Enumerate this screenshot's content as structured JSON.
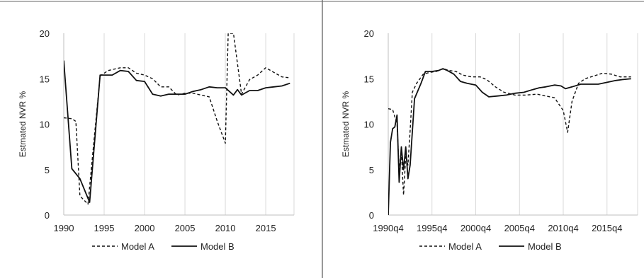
{
  "chart_data": [
    {
      "type": "line",
      "title": "",
      "xlabel": "",
      "ylabel": "Estmated NVR %",
      "ylim": [
        0,
        20
      ],
      "yticks": [
        "0",
        "5",
        "10",
        "15",
        "20"
      ],
      "xlim": [
        1990,
        2018.5
      ],
      "xticks": [
        {
          "value": 1990,
          "label": "1990"
        },
        {
          "value": 1995,
          "label": "1995"
        },
        {
          "value": 2000,
          "label": "2000"
        },
        {
          "value": 2005,
          "label": "2005"
        },
        {
          "value": 2010,
          "label": "2010"
        },
        {
          "value": 2015,
          "label": "2015"
        }
      ],
      "grid": "vertical",
      "legend": "bottom",
      "series": [
        {
          "name": "Model A",
          "style": "dashed",
          "x": [
            1990,
            1991,
            1991.5,
            1992,
            1993,
            1994.5,
            1995.5,
            1997,
            1998,
            1999,
            2000,
            2001,
            2002,
            2003,
            2004,
            2005,
            2006,
            2007,
            2008,
            2009,
            2010,
            2010.35,
            2011,
            2012,
            2013,
            2014,
            2015,
            2016,
            2017,
            2018
          ],
          "y": [
            10.7,
            10.6,
            10.3,
            2.1,
            1.2,
            15.3,
            15.9,
            16.2,
            16.2,
            15.6,
            15.4,
            15.0,
            14.1,
            14.1,
            13.2,
            13.4,
            13.4,
            13.2,
            13.0,
            10.3,
            7.9,
            20.0,
            20.0,
            13.3,
            14.9,
            15.4,
            16.2,
            15.7,
            15.2,
            15.1
          ]
        },
        {
          "name": "Model B",
          "style": "solid",
          "x": [
            1990,
            1991,
            1992,
            1993.2,
            1994.5,
            1996,
            1997,
            1998,
            1999,
            2000,
            2001,
            2002,
            2003,
            2004,
            2005,
            2006,
            2007,
            2008,
            2009,
            2010,
            2011,
            2011.5,
            2012,
            2013,
            2014,
            2015,
            2016,
            2017,
            2018
          ],
          "y": [
            17.0,
            5.1,
            4.0,
            1.4,
            15.4,
            15.4,
            15.9,
            15.8,
            14.8,
            14.7,
            13.3,
            13.1,
            13.3,
            13.3,
            13.3,
            13.6,
            13.8,
            14.1,
            14.0,
            14.0,
            13.2,
            13.8,
            13.2,
            13.7,
            13.7,
            14.0,
            14.1,
            14.2,
            14.5
          ]
        }
      ]
    },
    {
      "type": "line",
      "title": "",
      "xlabel": "",
      "ylabel": "Estmated NVR %",
      "ylim": [
        0,
        20
      ],
      "yticks": [
        "0",
        "5",
        "10",
        "15",
        "20"
      ],
      "xlim": [
        1990.75,
        2019.25
      ],
      "xticks": [
        {
          "value": 1990.75,
          "label": "1990q4"
        },
        {
          "value": 1995.75,
          "label": "1995q4"
        },
        {
          "value": 2000.75,
          "label": "2000q4"
        },
        {
          "value": 2005.75,
          "label": "2005q4"
        },
        {
          "value": 2010.75,
          "label": "2010q4"
        },
        {
          "value": 2015.75,
          "label": "2015q4"
        }
      ],
      "grid": "vertical",
      "legend": "bottom",
      "series": [
        {
          "name": "Model A",
          "style": "dashed",
          "x": [
            1990.75,
            1991.25,
            1991.5,
            1991.75,
            1992.0,
            1992.25,
            1992.5,
            1992.75,
            1993.0,
            1993.25,
            1993.5,
            1994.0,
            1994.75,
            1995.5,
            1996.25,
            1997.0,
            1997.75,
            1998.5,
            1999.25,
            2000.25,
            2001.25,
            2002.0,
            2003.0,
            2004.0,
            2005.25,
            2006.5,
            2007.75,
            2008.75,
            2009.75,
            2010.25,
            2010.75,
            2011.25,
            2011.75,
            2012.5,
            2013.25,
            2014.25,
            2015.25,
            2016.25,
            2017.25,
            2018.5
          ],
          "y": [
            11.7,
            11.6,
            10.8,
            10.0,
            5.0,
            7.0,
            2.2,
            6.5,
            5.5,
            9.3,
            13.5,
            14.5,
            15.5,
            15.7,
            15.8,
            16.1,
            15.9,
            15.8,
            15.4,
            15.2,
            15.2,
            14.9,
            14.1,
            13.5,
            13.2,
            13.2,
            13.3,
            13.1,
            12.9,
            12.2,
            11.5,
            9.1,
            12.5,
            14.5,
            15.0,
            15.3,
            15.6,
            15.5,
            15.2,
            15.2
          ]
        },
        {
          "name": "Model B",
          "style": "solid",
          "x": [
            1990.75,
            1991.0,
            1991.25,
            1991.5,
            1991.75,
            1992.0,
            1992.25,
            1992.5,
            1992.75,
            1993.0,
            1993.25,
            1993.75,
            1994.5,
            1995.0,
            1995.75,
            1996.5,
            1997.0,
            1997.5,
            1998.25,
            1999.0,
            1999.75,
            2000.75,
            2001.5,
            2002.25,
            2003.25,
            2004.25,
            2005.25,
            2006.25,
            2007.25,
            2008.0,
            2008.75,
            2009.75,
            2010.5,
            2011.0,
            2011.75,
            2012.75,
            2013.75,
            2014.75,
            2015.75,
            2016.75,
            2017.5,
            2018.5
          ],
          "y": [
            0.0,
            8.0,
            9.5,
            9.7,
            11.0,
            3.6,
            7.5,
            5.0,
            7.5,
            4.0,
            5.5,
            12.8,
            14.5,
            15.8,
            15.8,
            15.9,
            16.1,
            15.9,
            15.5,
            14.7,
            14.5,
            14.3,
            13.5,
            13.0,
            13.1,
            13.2,
            13.4,
            13.5,
            13.8,
            14.0,
            14.1,
            14.3,
            14.2,
            13.9,
            14.1,
            14.4,
            14.4,
            14.4,
            14.6,
            14.8,
            14.9,
            15.0
          ]
        }
      ]
    }
  ]
}
